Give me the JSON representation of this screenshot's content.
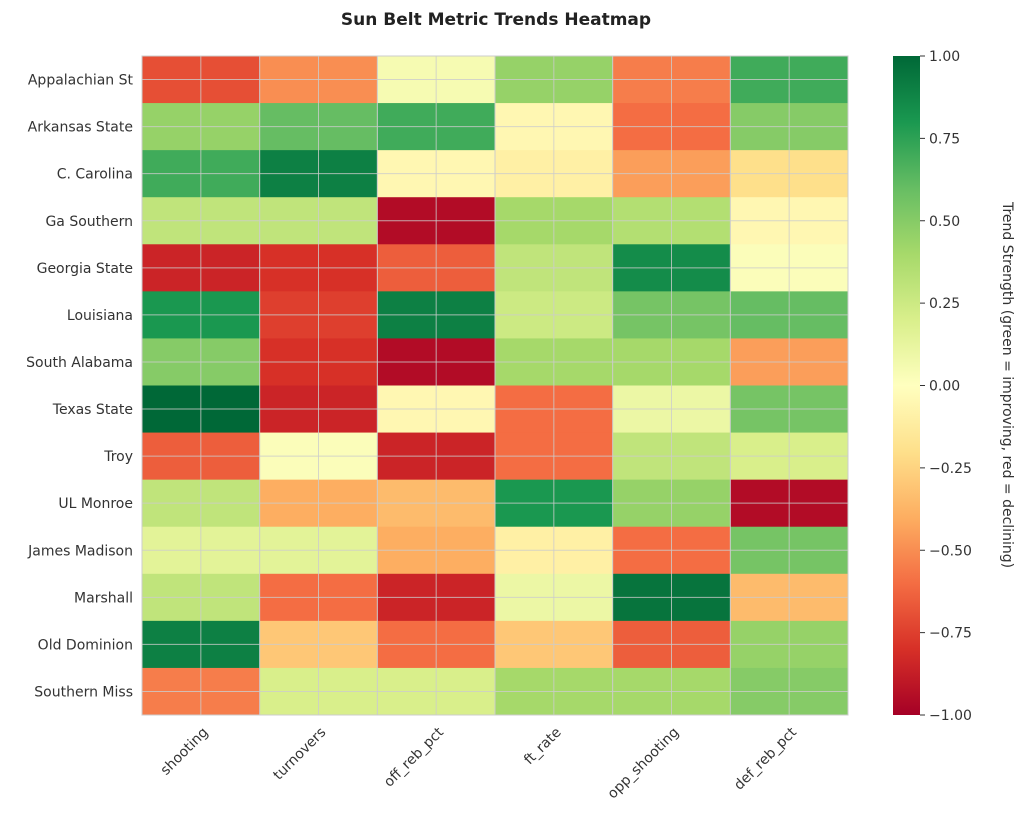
{
  "chart_data": {
    "type": "heatmap",
    "title": "Sun Belt Metric Trends Heatmap",
    "columns": [
      "shooting",
      "turnovers",
      "off_reb_pct",
      "ft_rate",
      "opp_shooting",
      "def_reb_pct"
    ],
    "rows": [
      "Appalachian St",
      "Arkansas State",
      "C. Carolina",
      "Ga Southern",
      "Georgia State",
      "Louisiana",
      "South Alabama",
      "Texas State",
      "Troy",
      "UL Monroe",
      "James Madison",
      "Marshall",
      "Old Dominion",
      "Southern Miss"
    ],
    "values": [
      [
        -0.7,
        -0.5,
        0.05,
        0.45,
        -0.55,
        0.7
      ],
      [
        0.45,
        0.6,
        0.7,
        -0.05,
        -0.6,
        0.5
      ],
      [
        0.7,
        0.9,
        -0.05,
        -0.1,
        -0.45,
        -0.2
      ],
      [
        0.3,
        0.3,
        -0.95,
        0.4,
        0.35,
        -0.05
      ],
      [
        -0.85,
        -0.8,
        -0.65,
        0.3,
        0.85,
        0.02
      ],
      [
        0.8,
        -0.75,
        0.9,
        0.25,
        0.55,
        0.6
      ],
      [
        0.5,
        -0.8,
        -0.95,
        0.4,
        0.4,
        -0.45
      ],
      [
        1.0,
        -0.85,
        -0.05,
        -0.6,
        0.1,
        0.55
      ],
      [
        -0.65,
        0.02,
        -0.85,
        -0.6,
        0.3,
        0.2
      ],
      [
        0.3,
        -0.4,
        -0.35,
        0.8,
        0.45,
        -0.95
      ],
      [
        0.15,
        0.15,
        -0.4,
        -0.1,
        -0.6,
        0.55
      ],
      [
        0.3,
        -0.6,
        -0.85,
        0.1,
        0.95,
        -0.35
      ],
      [
        0.9,
        -0.3,
        -0.6,
        -0.3,
        -0.65,
        0.45
      ],
      [
        -0.55,
        0.2,
        0.2,
        0.4,
        0.4,
        0.5
      ]
    ],
    "colormap": "RdYlGn",
    "vmin": -1,
    "vmax": 1,
    "colorbar": {
      "label": "Trend Strength (green = improving, red = declining)",
      "ticks": [
        "1.00",
        "0.75",
        "0.50",
        "0.25",
        "0.00",
        "−0.25",
        "−0.50",
        "−0.75",
        "−1.00"
      ],
      "tick_values": [
        1,
        0.75,
        0.5,
        0.25,
        0,
        -0.25,
        -0.5,
        -0.75,
        -1
      ]
    }
  }
}
